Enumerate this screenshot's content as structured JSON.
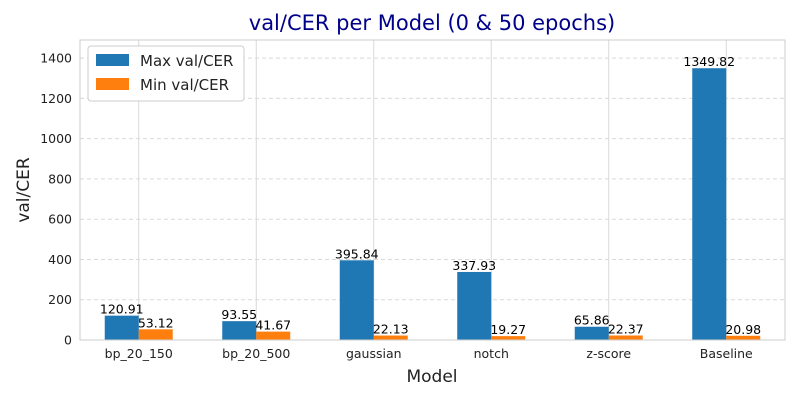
{
  "chart_data": {
    "type": "bar",
    "title": "val/CER per Model (0 & 50 epochs)",
    "xlabel": "Model",
    "ylabel": "val/CER",
    "categories": [
      "bp_20_150",
      "bp_20_500",
      "gaussian",
      "notch",
      "z-score",
      "Baseline"
    ],
    "series": [
      {
        "name": "Max val/CER",
        "color": "#1f77b4",
        "values": [
          120.91,
          93.55,
          395.84,
          337.93,
          65.86,
          1349.82
        ],
        "labels": [
          "120.91",
          "93.55",
          "395.84",
          "337.93",
          "65.86",
          "1349.82"
        ]
      },
      {
        "name": "Min val/CER",
        "color": "#ff7f0e",
        "values": [
          53.12,
          41.67,
          22.13,
          19.27,
          22.37,
          20.98
        ],
        "labels": [
          "53.12",
          "41.67",
          "22.13",
          "19.27",
          "22.37",
          "20.98"
        ]
      }
    ],
    "ylim": [
      0,
      1490
    ],
    "yticks": [
      0,
      200,
      400,
      600,
      800,
      1000,
      1200,
      1400
    ],
    "grid": true,
    "legend_position": "top-left"
  }
}
